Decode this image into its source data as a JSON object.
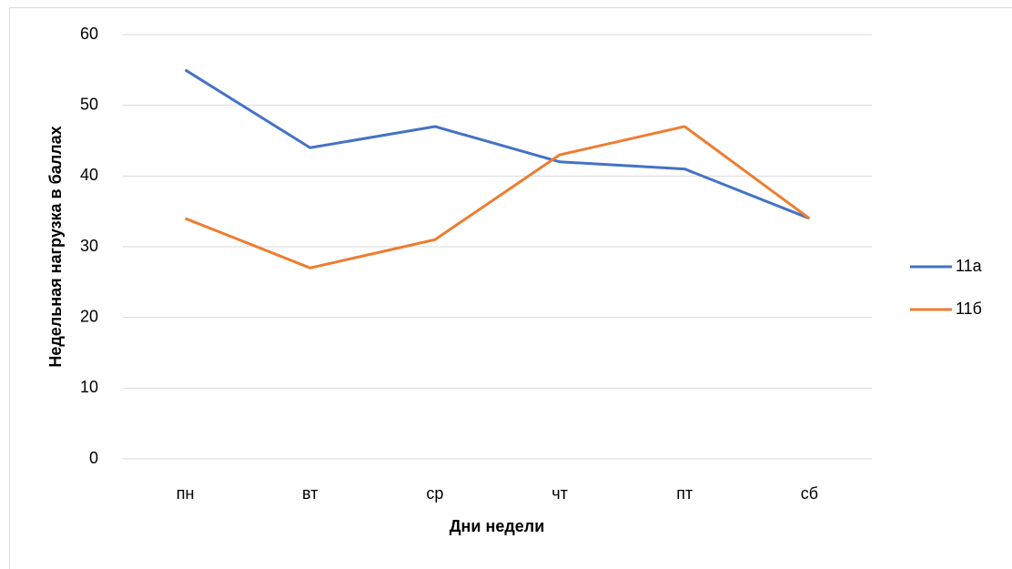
{
  "chart_data": {
    "type": "line",
    "x_label": "Дни недели",
    "y_label": "Недельная нагрузка в баллах",
    "categories": [
      "пн",
      "вт",
      "ср",
      "чт",
      "пт",
      "сб"
    ],
    "series": [
      {
        "name": "11а",
        "color": "#4472c4",
        "values": [
          55,
          44,
          47,
          42,
          41,
          34
        ]
      },
      {
        "name": "11б",
        "color": "#ed7d31",
        "values": [
          34,
          27,
          31,
          43,
          47,
          34
        ]
      }
    ],
    "ylim": [
      0,
      60
    ],
    "yticks": [
      0,
      10,
      20,
      30,
      40,
      50,
      60
    ],
    "grid": true,
    "legend": "right"
  }
}
